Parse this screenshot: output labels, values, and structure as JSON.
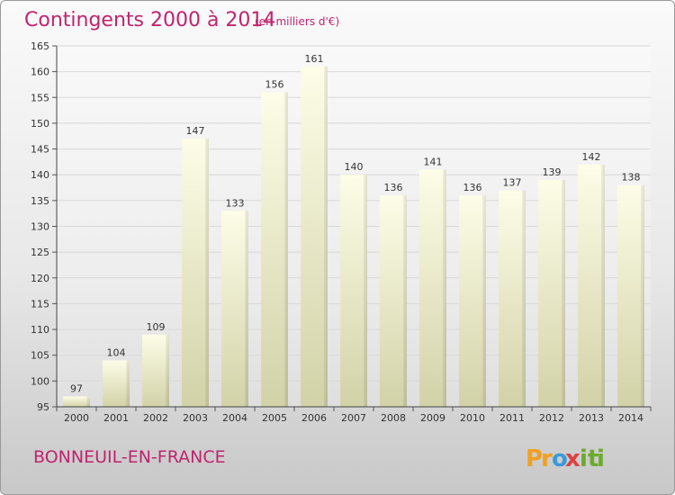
{
  "chart_data": {
    "type": "bar",
    "title": "Contingents 2000 à 2014",
    "subtitle": "(en milliers d'€)",
    "categories": [
      "2000",
      "2001",
      "2002",
      "2003",
      "2004",
      "2005",
      "2006",
      "2007",
      "2008",
      "2009",
      "2010",
      "2011",
      "2012",
      "2013",
      "2014"
    ],
    "values": [
      97,
      104,
      109,
      147,
      133,
      156,
      161,
      140,
      136,
      141,
      136,
      137,
      139,
      142,
      138
    ],
    "ylim": [
      95,
      165
    ],
    "yticks": [
      95,
      100,
      105,
      110,
      115,
      120,
      125,
      130,
      135,
      140,
      145,
      150,
      155,
      160,
      165
    ],
    "grid": true,
    "bar_color": "#f4f4c8",
    "location": "BONNEUIL-EN-FRANCE"
  },
  "brand": {
    "letters": [
      "P",
      "r",
      "o",
      "x",
      "i",
      "t",
      "i"
    ],
    "colors": [
      "#f0a020",
      "#f0a020",
      "#3a9ad9",
      "#e04040",
      "#6aab2e",
      "#6aab2e",
      "#6aab2e"
    ]
  }
}
